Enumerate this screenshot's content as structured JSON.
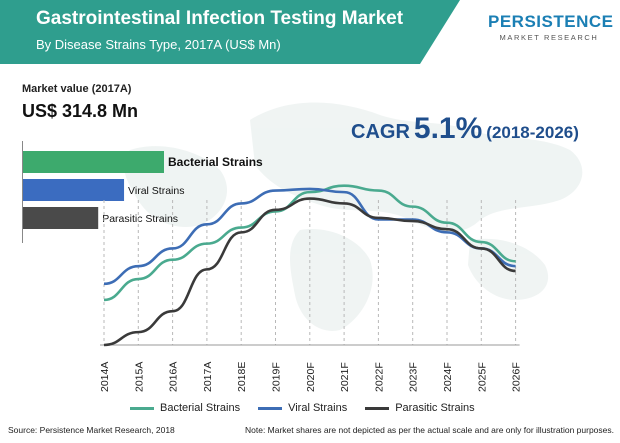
{
  "header": {
    "title": "Gastrointestinal Infection Testing Market",
    "subtitle": "By Disease Strains Type, 2017A (US$ Mn)"
  },
  "logo": {
    "main": "PERSISTENCE",
    "sub": "MARKET RESEARCH"
  },
  "market_value": {
    "label": "Market value (2017A)",
    "value": "US$ 314.8 Mn"
  },
  "cagr": {
    "label": "CAGR",
    "value": "5.1%",
    "period": "(2018-2026)"
  },
  "footer": {
    "source": "Source: Persistence Market Research, 2018",
    "note": "Note: Market shares are not depicted as per the actual scale and are only for illustration purposes."
  },
  "colors": {
    "header_bg": "#2f9e8e",
    "bacterial": "#3daa6d",
    "viral": "#3b6cc0",
    "parasitic": "#4a4a4a",
    "line_bacterial": "#4aaa8f",
    "line_viral": "#3d6db5",
    "line_parasitic": "#3a3a3a",
    "accent": "#1f4e8c"
  },
  "chart_data": [
    {
      "type": "bar",
      "orientation": "horizontal",
      "categories": [
        "Bacterial Strains",
        "Viral Strains",
        "Parasitic Strains"
      ],
      "values": [
        3.0,
        2.15,
        1.6
      ],
      "value_note": "relative share, not to scale"
    },
    {
      "type": "line",
      "categories": [
        "2014A",
        "2015A",
        "2016A",
        "2017A",
        "2018E",
        "2019F",
        "2020F",
        "2021F",
        "2022F",
        "2023F",
        "2024F",
        "2025F",
        "2026F"
      ],
      "series": [
        {
          "name": "Bacterial Strains",
          "values": [
            28,
            41,
            53,
            63,
            73,
            83,
            95,
            99,
            96,
            86,
            76,
            64,
            52
          ]
        },
        {
          "name": "Viral Strains",
          "values": [
            38,
            49,
            60,
            75,
            88,
            96,
            97,
            95,
            78,
            78,
            70,
            60,
            49
          ]
        },
        {
          "name": "Parasitic Strains",
          "values": [
            0,
            8,
            21,
            47,
            70,
            84,
            91,
            88,
            79,
            77,
            72,
            60,
            46
          ]
        }
      ],
      "ylim": [
        0,
        110
      ],
      "grid": "vertical dashed"
    }
  ]
}
